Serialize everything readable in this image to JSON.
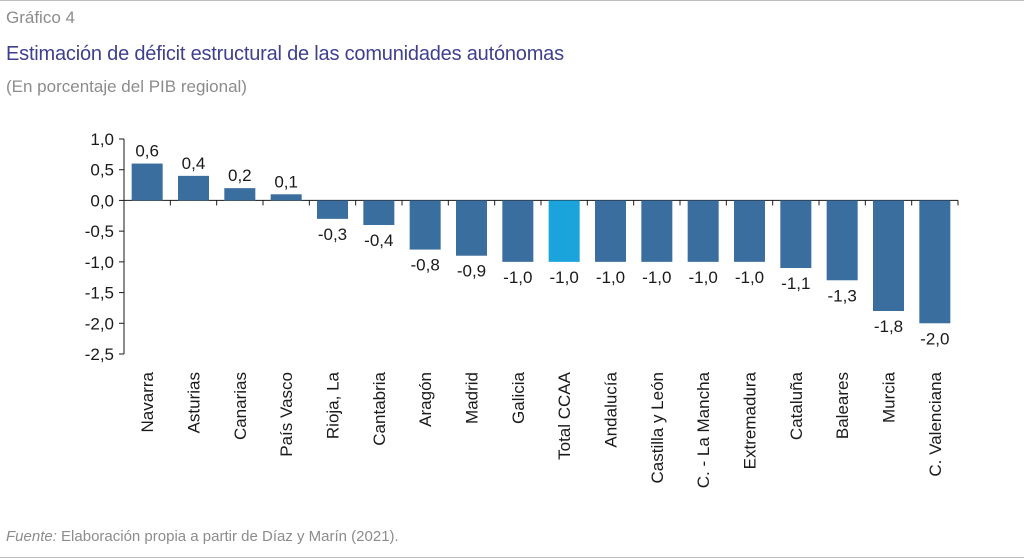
{
  "header": {
    "figure_label": "Gráfico 4",
    "title": "Estimación de déficit estructural de las comunidades autónomas",
    "subtitle": "(En porcentaje del PIB regional)"
  },
  "footer": {
    "source_lead": "Fuente:",
    "source_text": " Elaboración propia a partir de Díaz y Marín (2021)."
  },
  "colors": {
    "bar": "#3a6e9e",
    "highlight": "#1ba3dc",
    "title": "#3f3f8f",
    "muted_text": "#8c8c8c"
  },
  "chart_data": {
    "type": "bar",
    "title": "Estimación de déficit estructural de las comunidades autónomas",
    "subtitle": "(En porcentaje del PIB regional)",
    "categories": [
      "Navarra",
      "Asturias",
      "Canarias",
      "País Vasco",
      "Rioja, La",
      "Cantabria",
      "Aragón",
      "Madrid",
      "Galicia",
      "Total CCAA",
      "Andalucía",
      "Castilla y León",
      "C. - La Mancha",
      "Extremadura",
      "Cataluña",
      "Baleares",
      "Murcia",
      "C. Valenciana"
    ],
    "values": [
      0.6,
      0.4,
      0.2,
      0.1,
      -0.3,
      -0.4,
      -0.8,
      -0.9,
      -1.0,
      -1.0,
      -1.0,
      -1.0,
      -1.0,
      -1.0,
      -1.1,
      -1.3,
      -1.8,
      -2.0
    ],
    "value_labels": [
      "0,6",
      "0,4",
      "0,2",
      "0,1",
      "-0,3",
      "-0,4",
      "-0,8",
      "-0,9",
      "-1,0",
      "-1,0",
      "-1,0",
      "-1,0",
      "-1,0",
      "-1,0",
      "-1,1",
      "-1,3",
      "-1,8",
      "-2,0"
    ],
    "highlight_category": "Total CCAA",
    "ylim": [
      -2.5,
      1.0
    ],
    "yticks": [
      1.0,
      0.5,
      0.0,
      -0.5,
      -1.0,
      -1.5,
      -2.0,
      -2.5
    ],
    "ytick_labels": [
      "1,0",
      "0,5",
      "0,0",
      "-0,5",
      "-1,0",
      "-1,5",
      "-2,0",
      "-2,5"
    ],
    "xlabel": "",
    "ylabel": "",
    "grid": false,
    "legend": "none"
  }
}
